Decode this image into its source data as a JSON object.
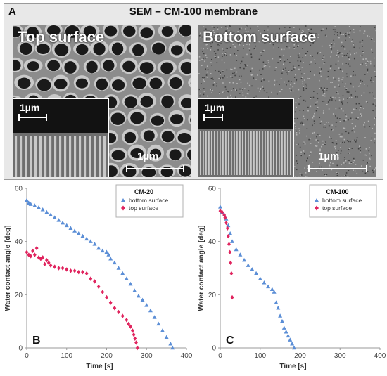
{
  "sem_panel": {
    "letter": "A",
    "title": "SEM – CM-100 membrane",
    "top": {
      "label": "Top surface",
      "scale_main": "1µm",
      "scale_inset": "1µm"
    },
    "bottom": {
      "label": "Bottom surface",
      "scale_main": "1µm",
      "scale_inset": "1µm"
    }
  },
  "colors": {
    "bottom_series": "#5b8ed6",
    "top_series": "#e0245e",
    "axis": "#9a9a9a"
  },
  "chart_data": [
    {
      "type": "scatter",
      "panel_label": "B",
      "xlabel": "Time [s]",
      "ylabel": "Water contact angle [deg]",
      "xlim": [
        0,
        400
      ],
      "ylim": [
        0,
        60
      ],
      "xticks": [
        0,
        100,
        200,
        300,
        400
      ],
      "yticks": [
        0,
        20,
        40,
        60
      ],
      "legend": {
        "title": "CM-20",
        "position": "top-right"
      },
      "series": [
        {
          "name": "bottom surface",
          "marker": "triangle",
          "x": [
            0,
            5,
            10,
            20,
            30,
            40,
            50,
            60,
            70,
            80,
            90,
            100,
            110,
            120,
            130,
            140,
            150,
            160,
            170,
            180,
            190,
            200,
            205,
            210,
            220,
            230,
            240,
            250,
            260,
            270,
            280,
            290,
            300,
            310,
            320,
            330,
            340,
            350,
            360,
            365
          ],
          "y": [
            55.5,
            54.5,
            54,
            53.5,
            52.8,
            52,
            51,
            50,
            49,
            48,
            47,
            46,
            45,
            44,
            43,
            42,
            41,
            40,
            39,
            37.5,
            36.5,
            36,
            35,
            33.5,
            32,
            30,
            28,
            26,
            24,
            21.5,
            19.5,
            18,
            16,
            14,
            11.5,
            9,
            6.5,
            4,
            1.5,
            0
          ]
        },
        {
          "name": "top surface",
          "marker": "diamond",
          "x": [
            0,
            5,
            10,
            15,
            20,
            25,
            30,
            35,
            40,
            45,
            50,
            55,
            60,
            70,
            80,
            90,
            100,
            110,
            120,
            130,
            140,
            150,
            160,
            170,
            180,
            190,
            200,
            210,
            220,
            230,
            240,
            250,
            255,
            260,
            265,
            268,
            271,
            274,
            277
          ],
          "y": [
            36,
            35,
            34.5,
            36.5,
            35,
            37.5,
            34,
            33.5,
            34,
            31.5,
            33,
            32,
            31,
            30.5,
            30,
            30,
            29.5,
            29,
            29,
            28.5,
            28.5,
            28,
            26,
            25,
            23,
            21,
            19,
            17,
            15,
            13.5,
            12,
            10.5,
            9,
            8,
            6.5,
            5,
            3.5,
            2,
            0
          ]
        }
      ]
    },
    {
      "type": "scatter",
      "panel_label": "C",
      "xlabel": "Time [s]",
      "ylabel": "Water contact angle [deg]",
      "xlim": [
        0,
        400
      ],
      "ylim": [
        0,
        60
      ],
      "xticks": [
        0,
        100,
        200,
        300,
        400
      ],
      "yticks": [
        0,
        20,
        40,
        60
      ],
      "legend": {
        "title": "CM-100",
        "position": "top-right"
      },
      "series": [
        {
          "name": "bottom surface",
          "marker": "triangle",
          "x": [
            0,
            5,
            10,
            15,
            20,
            25,
            30,
            40,
            50,
            60,
            70,
            80,
            90,
            100,
            110,
            120,
            130,
            135,
            140,
            145,
            150,
            155,
            160,
            165,
            170,
            175,
            180,
            185
          ],
          "y": [
            53,
            51,
            50,
            48.5,
            46,
            43,
            40,
            37,
            35,
            33,
            31,
            29.5,
            28,
            26,
            24.5,
            23,
            22,
            21,
            17,
            15,
            12,
            10,
            7.5,
            6,
            4.5,
            3,
            1.5,
            0
          ]
        },
        {
          "name": "top surface",
          "marker": "diamond",
          "x": [
            0,
            5,
            10,
            12,
            15,
            18,
            20,
            22,
            24,
            26,
            28,
            30
          ],
          "y": [
            51.5,
            51,
            50,
            49,
            47,
            45,
            42,
            39,
            36,
            32,
            28,
            19
          ]
        }
      ]
    }
  ]
}
